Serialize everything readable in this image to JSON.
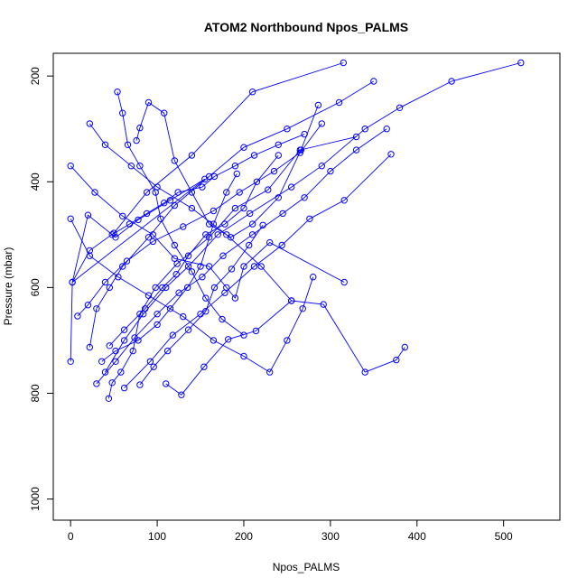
{
  "chart_data": {
    "type": "scatter",
    "title": "ATOM2 Northbound Npos_PALMS",
    "xlabel": "Npos_PALMS",
    "ylabel": "Pressure (mbar)",
    "xlim": [
      -20,
      565
    ],
    "ylim": [
      1040,
      157
    ],
    "y_reversed": true,
    "x_ticks": [
      "0",
      "100",
      "200",
      "300",
      "400",
      "500"
    ],
    "x_tick_values": [
      0,
      100,
      200,
      300,
      400,
      500
    ],
    "y_ticks": [
      "200",
      "400",
      "600",
      "800",
      "1000"
    ],
    "y_tick_values": [
      200,
      400,
      600,
      800,
      1000
    ],
    "series_color": "#0000ff",
    "marker": "open-circle",
    "grid": false,
    "series": [
      {
        "x": [
          0,
          2,
          20,
          52,
          78,
          115,
          155,
          2,
          22,
          50,
          88,
          140,
          210,
          315
        ],
        "y": [
          740,
          590,
          463,
          505,
          472,
          435,
          395,
          590,
          530,
          497,
          420,
          350,
          230,
          175
        ]
      },
      {
        "x": [
          22,
          30,
          45,
          60,
          90,
          120,
          160,
          200,
          250,
          310,
          350
        ],
        "y": [
          713,
          640,
          600,
          560,
          505,
          445,
          390,
          335,
          300,
          250,
          210
        ]
      },
      {
        "x": [
          44,
          48,
          58,
          72,
          80,
          98,
          123,
          160,
          190,
          228,
          265,
          330
        ],
        "y": [
          810,
          780,
          760,
          720,
          650,
          600,
          555,
          505,
          450,
          415,
          340,
          315
        ]
      },
      {
        "x": [
          40,
          62,
          84,
          110,
          136,
          170,
          207,
          255,
          290,
          340,
          380,
          440,
          520
        ],
        "y": [
          760,
          700,
          650,
          600,
          560,
          500,
          460,
          410,
          370,
          300,
          260,
          210,
          175
        ]
      },
      {
        "x": [
          30,
          52,
          74,
          100,
          125,
          152,
          176,
          210,
          245,
          270,
          300,
          330,
          365
        ],
        "y": [
          782,
          740,
          695,
          650,
          610,
          580,
          540,
          500,
          460,
          430,
          380,
          340,
          300
        ]
      },
      {
        "x": [
          110,
          128,
          154,
          182,
          214,
          255,
          292,
          340,
          376,
          386
        ],
        "y": [
          782,
          803,
          750,
          698,
          682,
          625,
          632,
          760,
          737,
          713
        ]
      },
      {
        "x": [
          8,
          20,
          40,
          65,
          95,
          130,
          165,
          195,
          235,
          265,
          290
        ],
        "y": [
          654,
          633,
          590,
          550,
          513,
          485,
          455,
          420,
          380,
          345,
          290
        ]
      },
      {
        "x": [
          62,
          92,
          118,
          150,
          178,
          212,
          244,
          276,
          316,
          370
        ],
        "y": [
          790,
          740,
          690,
          650,
          610,
          560,
          520,
          470,
          435,
          348
        ]
      },
      {
        "x": [
          0,
          22,
          55,
          90,
          130,
          165,
          200,
          230,
          250,
          268,
          280
        ],
        "y": [
          470,
          540,
          580,
          615,
          655,
          700,
          730,
          760,
          700,
          640,
          580
        ]
      },
      {
        "x": [
          22,
          40,
          70,
          100,
          140,
          180,
          220,
          255
        ],
        "y": [
          290,
          330,
          370,
          410,
          450,
          500,
          560,
          625
        ]
      },
      {
        "x": [
          54,
          60,
          66,
          80,
          98,
          104,
          120,
          140,
          156,
          175,
          200
        ],
        "y": [
          230,
          270,
          330,
          370,
          420,
          470,
          520,
          570,
          620,
          660,
          690
        ]
      },
      {
        "x": [
          0,
          28,
          60,
          95,
          120,
          160,
          180,
          190,
          200,
          230,
          316
        ],
        "y": [
          370,
          420,
          465,
          500,
          545,
          560,
          600,
          620,
          560,
          515,
          590
        ]
      },
      {
        "x": [
          45,
          62,
          86,
          106,
          122,
          136,
          156,
          178,
          200,
          215,
          240
        ],
        "y": [
          710,
          680,
          640,
          600,
          575,
          540,
          500,
          480,
          450,
          400,
          350
        ]
      },
      {
        "x": [
          76,
          80,
          90,
          108,
          120,
          140,
          160,
          185,
          210,
          240,
          266,
          286
        ],
        "y": [
          322,
          298,
          250,
          270,
          360,
          420,
          480,
          505,
          480,
          430,
          340,
          255
        ]
      },
      {
        "x": [
          36,
          52,
          78,
          100,
          115,
          135,
          150,
          165,
          180,
          192
        ],
        "y": [
          740,
          720,
          700,
          670,
          640,
          600,
          560,
          480,
          420,
          385
        ]
      },
      {
        "x": [
          80,
          96,
          112,
          136,
          156,
          166,
          186,
          206,
          222
        ],
        "y": [
          784,
          750,
          720,
          680,
          645,
          600,
          565,
          520,
          482
        ]
      },
      {
        "x": [
          48,
          68,
          88,
          108,
          124,
          152,
          166,
          190,
          212,
          240,
          270
        ],
        "y": [
          500,
          480,
          460,
          440,
          420,
          410,
          390,
          370,
          350,
          330,
          310
        ]
      }
    ]
  }
}
